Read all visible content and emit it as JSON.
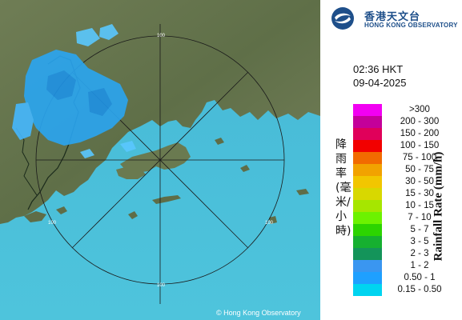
{
  "header": {
    "org_cn": "香港天文台",
    "org_en": "HONG KONG OBSERVATORY",
    "logo_icon": "hko-logo-icon"
  },
  "radar": {
    "time": "02:36 HKT",
    "date": "09-04-2025",
    "range_rings_km": [
      "100",
      "100",
      "100",
      "100"
    ],
    "copyright": "© Hong Kong Observatory"
  },
  "legend": {
    "title_cn": "降雨率(毫米/小時)",
    "title_en": "Rainfall Rate (mm/h)",
    "classes": [
      {
        "label": ">300",
        "color": "#f200f2"
      },
      {
        "label": "200 - 300",
        "color": "#c4009a"
      },
      {
        "label": "150 - 200",
        "color": "#e0005a"
      },
      {
        "label": "100 - 150",
        "color": "#f20000"
      },
      {
        "label": "75 - 100",
        "color": "#f26a00"
      },
      {
        "label": "50 - 75",
        "color": "#f2a200"
      },
      {
        "label": "30 - 50",
        "color": "#f2c600"
      },
      {
        "label": "15 - 30",
        "color": "#d8d800"
      },
      {
        "label": "10 - 15",
        "color": "#a6e600"
      },
      {
        "label": "7 - 10",
        "color": "#6cf200"
      },
      {
        "label": "5 - 7",
        "color": "#2cd400"
      },
      {
        "label": "3 - 5",
        "color": "#16b030"
      },
      {
        "label": "2 - 3",
        "color": "#14945a"
      },
      {
        "label": "1 - 2",
        "color": "#3a96f0"
      },
      {
        "label": "0.50 - 1",
        "color": "#1ea0ff"
      },
      {
        "label": "0.15 - 0.50",
        "color": "#00d4f0"
      }
    ]
  }
}
